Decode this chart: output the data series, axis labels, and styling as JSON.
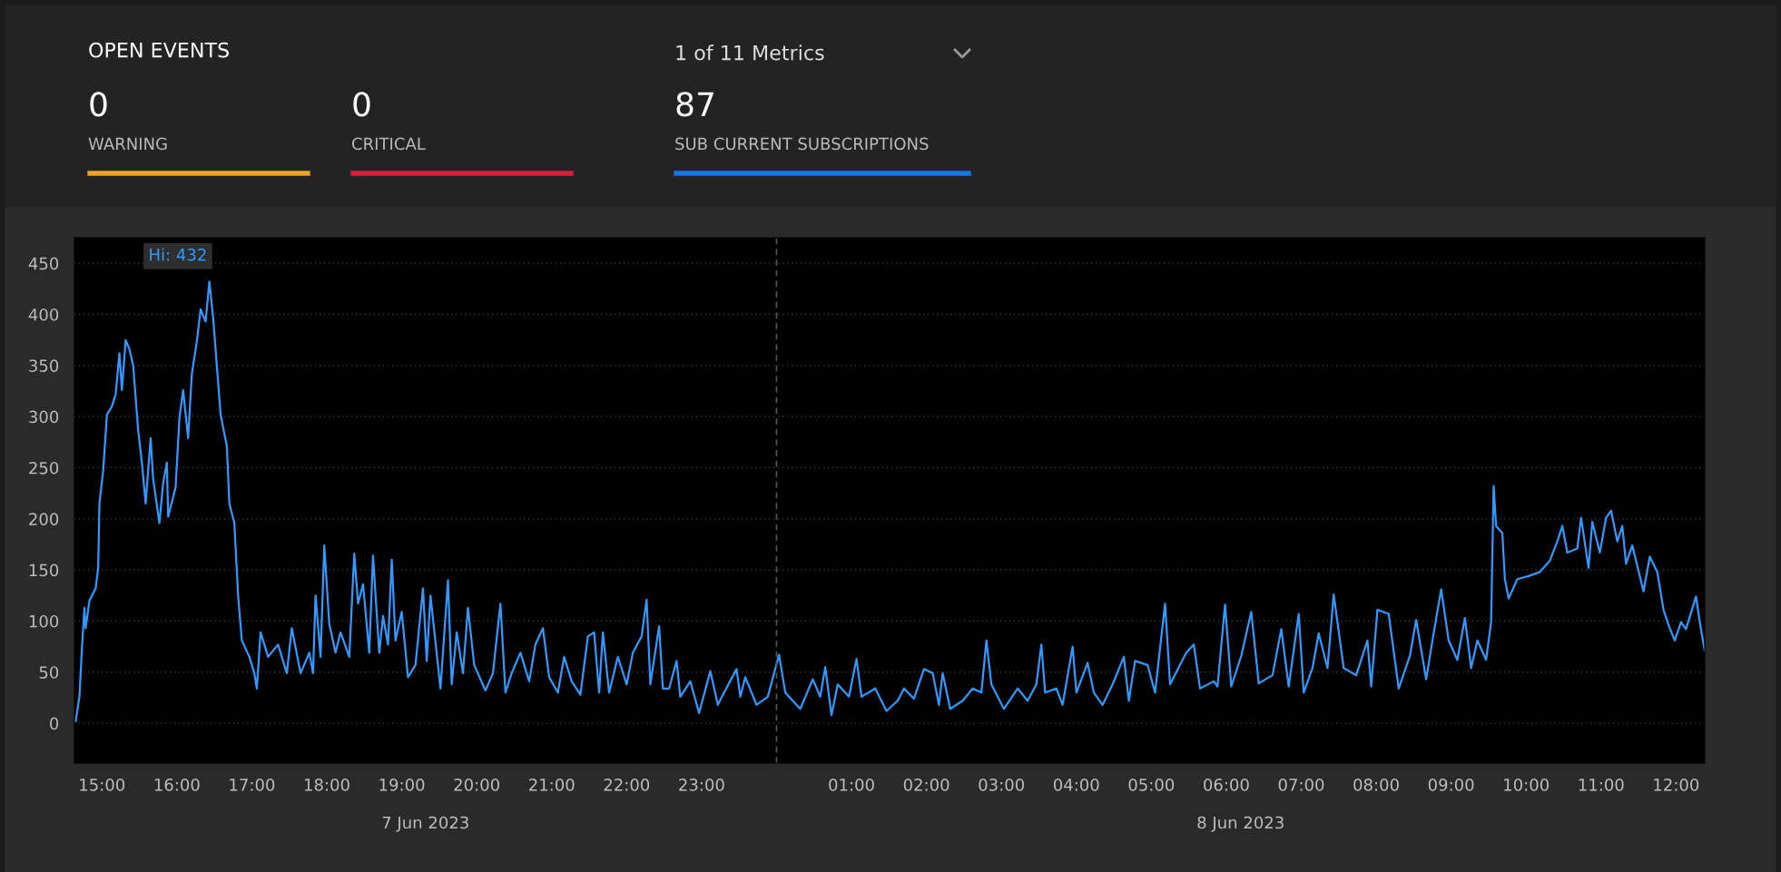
{
  "chart_data": [
    {
      "type": "other",
      "title": "OPEN EVENTS",
      "annotations": [
        "0",
        "WARNING",
        "0",
        "CRITICAL",
        "1 of 11 Metrics",
        "87",
        "SUB CURRENT SUBSCRIPTIONS"
      ]
    },
    {
      "type": "line",
      "x": [
        "2023-06-07T14:39",
        "2023-06-07T14:42",
        "2023-06-07T14:44",
        "2023-06-07T14:46",
        "2023-06-07T14:47",
        "2023-06-07T14:50",
        "2023-06-07T14:55",
        "2023-06-07T14:57",
        "2023-06-07T14:58",
        "2023-06-07T15:01",
        "2023-06-07T15:04",
        "2023-06-07T15:08",
        "2023-06-07T15:11",
        "2023-06-07T15:14",
        "2023-06-07T15:16",
        "2023-06-07T15:19",
        "2023-06-07T15:22",
        "2023-06-07T15:25",
        "2023-06-07T15:29",
        "2023-06-07T15:32",
        "2023-06-07T15:35",
        "2023-06-07T15:39",
        "2023-06-07T15:41",
        "2023-06-07T15:46",
        "2023-06-07T15:49",
        "2023-06-07T15:52",
        "2023-06-07T15:53",
        "2023-06-07T15:59",
        "2023-06-07T16:02",
        "2023-06-07T16:05",
        "2023-06-07T16:09",
        "2023-06-07T16:12",
        "2023-06-07T16:16",
        "2023-06-07T16:19",
        "2023-06-07T16:23",
        "2023-06-07T16:26",
        "2023-06-07T16:29",
        "2023-06-07T16:32",
        "2023-06-07T16:35",
        "2023-06-07T16:40",
        "2023-06-07T16:42",
        "2023-06-07T16:46",
        "2023-06-07T16:49",
        "2023-06-07T16:52",
        "2023-06-07T16:58",
        "2023-06-07T17:02",
        "2023-06-07T17:04",
        "2023-06-07T17:07",
        "2023-06-07T17:13",
        "2023-06-07T17:21",
        "2023-06-07T17:28",
        "2023-06-07T17:32",
        "2023-06-07T17:39",
        "2023-06-07T17:46",
        "2023-06-07T17:49",
        "2023-06-07T17:51",
        "2023-06-07T17:55",
        "2023-06-07T17:58",
        "2023-06-07T18:02",
        "2023-06-07T18:07",
        "2023-06-07T18:11",
        "2023-06-07T18:18",
        "2023-06-07T18:22",
        "2023-06-07T18:25",
        "2023-06-07T18:29",
        "2023-06-07T18:34",
        "2023-06-07T18:37",
        "2023-06-07T18:42",
        "2023-06-07T18:45",
        "2023-06-07T18:49",
        "2023-06-07T18:52",
        "2023-06-07T18:55",
        "2023-06-07T19:00",
        "2023-06-07T19:05",
        "2023-06-07T19:11",
        "2023-06-07T19:17",
        "2023-06-07T19:20",
        "2023-06-07T19:23",
        "2023-06-07T19:31",
        "2023-06-07T19:37",
        "2023-06-07T19:40",
        "2023-06-07T19:44",
        "2023-06-07T19:49",
        "2023-06-07T19:53",
        "2023-06-07T19:58",
        "2023-06-07T20:07",
        "2023-06-07T20:13",
        "2023-06-07T20:19",
        "2023-06-07T20:23",
        "2023-06-07T20:28",
        "2023-06-07T20:35",
        "2023-06-07T20:42",
        "2023-06-07T20:47",
        "2023-06-07T20:53",
        "2023-06-07T20:58",
        "2023-06-07T21:05",
        "2023-06-07T21:10",
        "2023-06-07T21:16",
        "2023-06-07T21:23",
        "2023-06-07T21:29",
        "2023-06-07T21:34",
        "2023-06-07T21:38",
        "2023-06-07T21:41",
        "2023-06-07T21:46",
        "2023-06-07T21:53",
        "2023-06-07T22:00",
        "2023-06-07T22:05",
        "2023-06-07T22:12",
        "2023-06-07T22:16",
        "2023-06-07T22:19",
        "2023-06-07T22:26",
        "2023-06-07T22:29",
        "2023-06-07T22:34",
        "2023-06-07T22:40",
        "2023-06-07T22:43",
        "2023-06-07T22:51",
        "2023-06-07T22:58",
        "2023-06-07T23:07",
        "2023-06-07T23:13",
        "2023-06-07T23:18",
        "2023-06-07T23:28",
        "2023-06-07T23:31",
        "2023-06-07T23:35",
        "2023-06-07T23:44",
        "2023-06-07T23:53",
        "2023-06-08T00:02",
        "2023-06-08T00:07",
        "2023-06-08T00:19",
        "2023-06-08T00:29",
        "2023-06-08T00:35",
        "2023-06-08T00:39",
        "2023-06-08T00:44",
        "2023-06-08T00:49",
        "2023-06-08T00:58",
        "2023-06-08T01:04",
        "2023-06-08T01:08",
        "2023-06-08T01:19",
        "2023-06-08T01:28",
        "2023-06-08T01:37",
        "2023-06-08T01:42",
        "2023-06-08T01:50",
        "2023-06-08T01:58",
        "2023-06-08T02:05",
        "2023-06-08T02:10",
        "2023-06-08T02:13",
        "2023-06-08T02:19",
        "2023-06-08T02:29",
        "2023-06-08T02:37",
        "2023-06-08T02:44",
        "2023-06-08T02:48",
        "2023-06-08T02:52",
        "2023-06-08T03:02",
        "2023-06-08T03:13",
        "2023-06-08T03:21",
        "2023-06-08T03:28",
        "2023-06-08T03:32",
        "2023-06-08T03:35",
        "2023-06-08T03:44",
        "2023-06-08T03:49",
        "2023-06-08T03:57",
        "2023-06-08T04:00",
        "2023-06-08T04:09",
        "2023-06-08T04:14",
        "2023-06-08T04:21",
        "2023-06-08T04:29",
        "2023-06-08T04:38",
        "2023-06-08T04:42",
        "2023-06-08T04:47",
        "2023-06-08T04:57",
        "2023-06-08T05:03",
        "2023-06-08T05:11",
        "2023-06-08T05:15",
        "2023-06-08T05:28",
        "2023-06-08T05:34",
        "2023-06-08T05:39",
        "2023-06-08T05:50",
        "2023-06-08T05:53",
        "2023-06-08T05:59",
        "2023-06-08T06:04",
        "2023-06-08T06:12",
        "2023-06-08T06:20",
        "2023-06-08T06:26",
        "2023-06-08T06:37",
        "2023-06-08T06:44",
        "2023-06-08T06:50",
        "2023-06-08T06:58",
        "2023-06-08T07:02",
        "2023-06-08T07:09",
        "2023-06-08T07:14",
        "2023-06-08T07:21",
        "2023-06-08T07:26",
        "2023-06-08T07:34",
        "2023-06-08T07:44",
        "2023-06-08T07:53",
        "2023-06-08T07:56",
        "2023-06-08T08:01",
        "2023-06-08T08:10",
        "2023-06-08T08:18",
        "2023-06-08T08:27",
        "2023-06-08T08:32",
        "2023-06-08T08:40",
        "2023-06-08T08:46",
        "2023-06-08T08:52",
        "2023-06-08T08:58",
        "2023-06-08T09:05",
        "2023-06-08T09:11",
        "2023-06-08T09:16",
        "2023-06-08T09:21",
        "2023-06-08T09:28",
        "2023-06-08T09:32",
        "2023-06-08T09:34",
        "2023-06-08T09:36",
        "2023-06-08T09:41",
        "2023-06-08T09:43",
        "2023-06-08T09:46",
        "2023-06-08T09:53",
        "2023-06-08T10:02",
        "2023-06-08T10:11",
        "2023-06-08T10:19",
        "2023-06-08T10:25",
        "2023-06-08T10:29",
        "2023-06-08T10:33",
        "2023-06-08T10:41",
        "2023-06-08T10:44",
        "2023-06-08T10:50",
        "2023-06-08T10:53",
        "2023-06-08T10:59",
        "2023-06-08T11:04",
        "2023-06-08T11:08",
        "2023-06-08T11:13",
        "2023-06-08T11:17",
        "2023-06-08T11:20",
        "2023-06-08T11:25",
        "2023-06-08T11:34",
        "2023-06-08T11:39",
        "2023-06-08T11:45",
        "2023-06-08T11:50",
        "2023-06-08T11:54",
        "2023-06-08T11:59",
        "2023-06-08T12:04",
        "2023-06-08T12:08",
        "2023-06-08T12:16",
        "2023-06-08T12:19",
        "2023-06-08T12:23"
      ],
      "series": [
        {
          "color": "#3399ff",
          "values": [
            2,
            26,
            73,
            113,
            93,
            120,
            132,
            152,
            215,
            247,
            302,
            310,
            322,
            362,
            326,
            375,
            366,
            350,
            287,
            255,
            215,
            279,
            239,
            196,
            235,
            255,
            202,
            231,
            298,
            326,
            279,
            342,
            374,
            405,
            393,
            432,
            397,
            350,
            302,
            271,
            215,
            196,
            125,
            81,
            65,
            49,
            34,
            89,
            65,
            77,
            49,
            93,
            49,
            69,
            49,
            125,
            65,
            174,
            97,
            69,
            89,
            65,
            166,
            117,
            136,
            69,
            164,
            69,
            105,
            77,
            160,
            81,
            109,
            45,
            57,
            132,
            61,
            125,
            34,
            140,
            38,
            89,
            49,
            113,
            57,
            32,
            49,
            117,
            30,
            49,
            69,
            41,
            77,
            93,
            45,
            30,
            65,
            41,
            28,
            85,
            89,
            30,
            89,
            30,
            65,
            38,
            69,
            85,
            121,
            38,
            95,
            34,
            34,
            61,
            26,
            41,
            10,
            51,
            18,
            30,
            53,
            26,
            45,
            18,
            26,
            67,
            30,
            14,
            43,
            26,
            55,
            8,
            38,
            26,
            63,
            26,
            34,
            12,
            22,
            34,
            24,
            53,
            49,
            18,
            49,
            14,
            22,
            34,
            30,
            81,
            38,
            14,
            34,
            22,
            38,
            77,
            30,
            34,
            18,
            75,
            30,
            59,
            30,
            18,
            38,
            65,
            22,
            61,
            57,
            30,
            117,
            38,
            69,
            77,
            34,
            41,
            36,
            116,
            36,
            66,
            109,
            39,
            47,
            92,
            36,
            107,
            30,
            54,
            88,
            54,
            126,
            54,
            47,
            81,
            36,
            111,
            107,
            34,
            66,
            101,
            43,
            88,
            131,
            81,
            62,
            103,
            54,
            81,
            62,
            99,
            232,
            193,
            186,
            141,
            122,
            141,
            144,
            148,
            159,
            178,
            193,
            167,
            171,
            201,
            152,
            197,
            167,
            201,
            208,
            178,
            193,
            156,
            174,
            129,
            163,
            148,
            111,
            96,
            81,
            99,
            92,
            124,
            99,
            71
          ]
        }
      ],
      "xlim": [
        "2023-06-07T14:38",
        "2023-06-08T12:23"
      ],
      "xticks": [
        {
          "value": "2023-06-07T15:00",
          "label": "15:00"
        },
        {
          "value": "2023-06-07T16:00",
          "label": "16:00"
        },
        {
          "value": "2023-06-07T17:00",
          "label": "17:00"
        },
        {
          "value": "2023-06-07T18:00",
          "label": "18:00"
        },
        {
          "value": "2023-06-07T19:00",
          "label": "19:00"
        },
        {
          "value": "2023-06-07T20:00",
          "label": "20:00"
        },
        {
          "value": "2023-06-07T21:00",
          "label": "21:00"
        },
        {
          "value": "2023-06-07T22:00",
          "label": "22:00"
        },
        {
          "value": "2023-06-07T23:00",
          "label": "23:00"
        },
        {
          "value": "2023-06-08T01:00",
          "label": "01:00"
        },
        {
          "value": "2023-06-08T02:00",
          "label": "02:00"
        },
        {
          "value": "2023-06-08T03:00",
          "label": "03:00"
        },
        {
          "value": "2023-06-08T04:00",
          "label": "04:00"
        },
        {
          "value": "2023-06-08T05:00",
          "label": "05:00"
        },
        {
          "value": "2023-06-08T06:00",
          "label": "06:00"
        },
        {
          "value": "2023-06-08T07:00",
          "label": "07:00"
        },
        {
          "value": "2023-06-08T08:00",
          "label": "08:00"
        },
        {
          "value": "2023-06-08T09:00",
          "label": "09:00"
        },
        {
          "value": "2023-06-08T10:00",
          "label": "10:00"
        },
        {
          "value": "2023-06-08T11:00",
          "label": "11:00"
        },
        {
          "value": "2023-06-08T12:00",
          "label": "12:00"
        }
      ],
      "ylim": [
        -39,
        475
      ],
      "yticks": [
        0,
        50,
        100,
        150,
        200,
        250,
        300,
        350,
        400,
        450
      ],
      "grid": "y",
      "ref_lines": [
        {
          "axis": "x",
          "value": "2023-06-08T00:00",
          "color": "#555555",
          "line_style": "dashed"
        }
      ],
      "annotations": [
        "7 Jun 2023",
        "8 Jun 2023",
        {
          "text": "Hi: 432",
          "x": "2023-06-07T16:26",
          "y": 432
        }
      ]
    }
  ]
}
